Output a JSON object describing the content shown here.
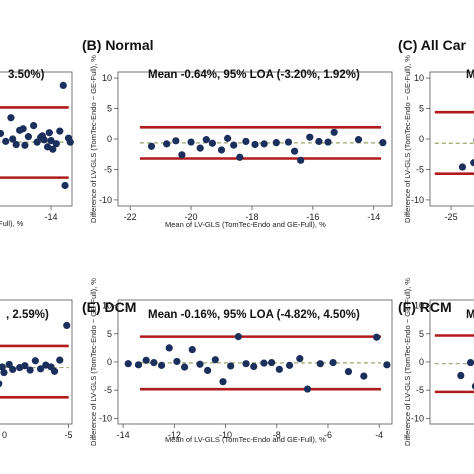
{
  "colors": {
    "point": "#1b2f5c",
    "loa_line": "#b01c1c",
    "mean_line": "#9aa56a",
    "frame": "#555555"
  },
  "chart_data": [
    {
      "id": "top-left-cropped",
      "type": "scatter",
      "title": "",
      "stat_text": "3.50%)",
      "xlabel": "Full), %",
      "ylabel": "",
      "xticks": [
        -14
      ],
      "xlim": [
        -17.5,
        -12.8
      ],
      "ylim": [
        -9,
        8
      ],
      "yticks": [],
      "lines": {
        "upper_loa": 3.5,
        "mean": -0.9,
        "lower_loa": -5.4
      },
      "points": [
        {
          "x": -16.9,
          "y": 0.2
        },
        {
          "x": -16.6,
          "y": -0.8
        },
        {
          "x": -16.3,
          "y": 2.2
        },
        {
          "x": -16.0,
          "y": -1.2
        },
        {
          "x": -15.8,
          "y": 0.6
        },
        {
          "x": -15.5,
          "y": -1.3
        },
        {
          "x": -15.3,
          "y": -0.2
        },
        {
          "x": -15.0,
          "y": 1.2
        },
        {
          "x": -14.8,
          "y": -0.9
        },
        {
          "x": -14.6,
          "y": -0.3
        },
        {
          "x": -14.4,
          "y": -0.6
        },
        {
          "x": -14.2,
          "y": -1.5
        },
        {
          "x": -14.1,
          "y": 0.3
        },
        {
          "x": -13.9,
          "y": -1.8
        },
        {
          "x": -13.7,
          "y": -1.1
        },
        {
          "x": -13.5,
          "y": 0.5
        },
        {
          "x": -13.3,
          "y": 6.3
        },
        {
          "x": -13.2,
          "y": -6.4
        },
        {
          "x": -13.0,
          "y": -0.4
        },
        {
          "x": -12.9,
          "y": -0.9
        },
        {
          "x": -14.5,
          "y": -0.1
        },
        {
          "x": -15.6,
          "y": 0.8
        },
        {
          "x": -16.2,
          "y": -0.5
        },
        {
          "x": -14.0,
          "y": -0.7
        }
      ]
    },
    {
      "id": "normal",
      "type": "scatter",
      "title": "(B) Normal",
      "stat_text": "Mean -0.64%, 95% LOA (-3.20%, 1.92%)",
      "xlabel": "Mean of LV-GLS (TomTec-Endo and GE-Full), %",
      "ylabel": "Difference of LV-GLS (TomTec-Endo − GE-Full), %",
      "xticks": [
        -22,
        -20,
        -18,
        -16,
        -14
      ],
      "xlim": [
        -22.4,
        -13.4
      ],
      "yticks": [
        -10,
        -5,
        0,
        5,
        10
      ],
      "ylim": [
        -11,
        11
      ],
      "lines": {
        "upper_loa": 1.92,
        "mean": -0.64,
        "lower_loa": -3.2
      },
      "points": [
        {
          "x": -21.3,
          "y": -1.2
        },
        {
          "x": -20.8,
          "y": -0.8
        },
        {
          "x": -20.5,
          "y": -0.3
        },
        {
          "x": -20.3,
          "y": -2.6
        },
        {
          "x": -20.0,
          "y": -0.5
        },
        {
          "x": -19.7,
          "y": -1.5
        },
        {
          "x": -19.5,
          "y": -0.1
        },
        {
          "x": -19.3,
          "y": -0.7
        },
        {
          "x": -19.0,
          "y": -1.8
        },
        {
          "x": -18.8,
          "y": 0.1
        },
        {
          "x": -18.6,
          "y": -1.0
        },
        {
          "x": -18.4,
          "y": -3.0
        },
        {
          "x": -18.2,
          "y": -0.4
        },
        {
          "x": -17.9,
          "y": -0.9
        },
        {
          "x": -17.6,
          "y": -0.8
        },
        {
          "x": -17.2,
          "y": -0.6
        },
        {
          "x": -16.8,
          "y": -0.5
        },
        {
          "x": -16.6,
          "y": -2.0
        },
        {
          "x": -16.4,
          "y": -3.5
        },
        {
          "x": -16.1,
          "y": 0.3
        },
        {
          "x": -15.8,
          "y": -0.4
        },
        {
          "x": -15.5,
          "y": -0.5
        },
        {
          "x": -15.3,
          "y": 1.1
        },
        {
          "x": -14.5,
          "y": -0.1
        },
        {
          "x": -13.7,
          "y": -0.6
        }
      ]
    },
    {
      "id": "all-cardiomyopathy-cropped",
      "type": "scatter",
      "title": "(C) All Car",
      "stat_text": "M",
      "xlabel": "",
      "ylabel": "Difference of LV-GLS (TomTec-Endo − GE-Full), %",
      "xticks": [
        -25
      ],
      "xlim": [
        -26.3,
        -22.6
      ],
      "yticks": [
        -10,
        -5,
        0,
        5,
        10
      ],
      "ylim": [
        -11,
        11
      ],
      "lines": {
        "upper_loa": 4.4,
        "mean": -0.7,
        "lower_loa": -5.7
      },
      "points": [
        {
          "x": -24.3,
          "y": -4.6
        },
        {
          "x": -23.6,
          "y": -3.9
        },
        {
          "x": -23.3,
          "y": 1.5
        },
        {
          "x": -23.1,
          "y": -2.3
        },
        {
          "x": -22.9,
          "y": -0.7
        },
        {
          "x": -22.8,
          "y": 3.3
        },
        {
          "x": -23.4,
          "y": -0.2
        },
        {
          "x": -22.7,
          "y": -1.6
        }
      ]
    },
    {
      "id": "bottom-left-cropped",
      "type": "scatter",
      "title": "",
      "stat_text": ", 2.59%)",
      "xlabel": "",
      "ylabel": "",
      "xticks": [
        -5
      ],
      "xticks_extra_label": "0",
      "xlim": [
        -9.5,
        -4.8
      ],
      "ylim": [
        -10,
        10
      ],
      "yticks": [],
      "lines": {
        "upper_loa": 2.59,
        "mean": -0.9,
        "lower_loa": -5.7
      },
      "points": [
        {
          "x": -9.3,
          "y": -0.5
        },
        {
          "x": -9.0,
          "y": -3.5
        },
        {
          "x": -8.8,
          "y": -0.8
        },
        {
          "x": -8.7,
          "y": -1.7
        },
        {
          "x": -8.4,
          "y": -0.4
        },
        {
          "x": -8.2,
          "y": -1.2
        },
        {
          "x": -7.8,
          "y": -0.9
        },
        {
          "x": -7.5,
          "y": -0.6
        },
        {
          "x": -7.2,
          "y": -1.3
        },
        {
          "x": -6.9,
          "y": 0.2
        },
        {
          "x": -6.6,
          "y": -1.1
        },
        {
          "x": -6.3,
          "y": -0.5
        },
        {
          "x": -6.0,
          "y": -0.8
        },
        {
          "x": -5.8,
          "y": -1.5
        },
        {
          "x": -5.5,
          "y": 0.3
        },
        {
          "x": -5.1,
          "y": 5.9
        }
      ]
    },
    {
      "id": "dcm",
      "type": "scatter",
      "title": "(E) DCM",
      "stat_text": "Mean -0.16%, 95% LOA (-4.82%, 4.50%)",
      "xlabel": "Mean of LV-GLS (TomTec-Endo and GE-Full), %",
      "ylabel": "Difference of LV-GLS (TomTec-Endo − GE-Full), %",
      "xticks": [
        -14,
        -12,
        -10,
        -8,
        -6,
        -4
      ],
      "xlim": [
        -14.2,
        -3.5
      ],
      "yticks": [
        -10,
        -5,
        0,
        5,
        10
      ],
      "ylim": [
        -11,
        11
      ],
      "lines": {
        "upper_loa": 4.5,
        "mean": -0.16,
        "lower_loa": -4.82
      },
      "points": [
        {
          "x": -13.8,
          "y": -0.3
        },
        {
          "x": -13.4,
          "y": -0.5
        },
        {
          "x": -13.1,
          "y": 0.3
        },
        {
          "x": -12.8,
          "y": -0.1
        },
        {
          "x": -12.5,
          "y": -0.6
        },
        {
          "x": -12.2,
          "y": 2.5
        },
        {
          "x": -11.9,
          "y": 0.1
        },
        {
          "x": -11.6,
          "y": -0.9
        },
        {
          "x": -11.3,
          "y": 2.2
        },
        {
          "x": -11.0,
          "y": -0.4
        },
        {
          "x": -10.7,
          "y": -1.5
        },
        {
          "x": -10.4,
          "y": 0.4
        },
        {
          "x": -10.1,
          "y": -3.5
        },
        {
          "x": -9.8,
          "y": -0.7
        },
        {
          "x": -9.5,
          "y": 4.5
        },
        {
          "x": -9.2,
          "y": -0.3
        },
        {
          "x": -8.9,
          "y": -0.8
        },
        {
          "x": -8.5,
          "y": -0.2
        },
        {
          "x": -8.2,
          "y": -0.1
        },
        {
          "x": -7.9,
          "y": -1.3
        },
        {
          "x": -7.5,
          "y": -0.6
        },
        {
          "x": -7.1,
          "y": 0.6
        },
        {
          "x": -6.8,
          "y": -4.8
        },
        {
          "x": -6.3,
          "y": -0.3
        },
        {
          "x": -5.8,
          "y": -0.1
        },
        {
          "x": -5.2,
          "y": -1.7
        },
        {
          "x": -4.6,
          "y": -2.5
        },
        {
          "x": -4.1,
          "y": 4.4
        },
        {
          "x": -3.7,
          "y": -0.5
        }
      ]
    },
    {
      "id": "rcm-cropped",
      "type": "scatter",
      "title": "(F) RCM",
      "stat_text": "M",
      "xlabel": "",
      "ylabel": "Difference of LV-GLS (TomTec-Endo − GE-Full), %",
      "xticks": [],
      "xlim": [
        -26.3,
        -22.6
      ],
      "yticks": [
        -10,
        -5,
        0,
        5,
        10
      ],
      "ylim": [
        -11,
        11
      ],
      "lines": {
        "upper_loa": 4.7,
        "mean": -0.3,
        "lower_loa": -5.3
      },
      "points": [
        {
          "x": -24.4,
          "y": -2.4
        },
        {
          "x": -23.8,
          "y": -0.1
        },
        {
          "x": -23.3,
          "y": -0.6
        },
        {
          "x": -22.9,
          "y": 3.6
        },
        {
          "x": -23.5,
          "y": -4.3
        },
        {
          "x": -22.8,
          "y": -0.7
        },
        {
          "x": -23.0,
          "y": -1.2
        }
      ]
    }
  ]
}
